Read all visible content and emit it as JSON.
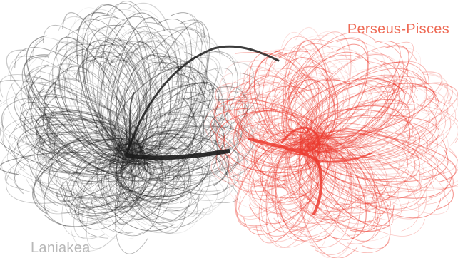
{
  "image": {
    "subject": "cosmic flow lines of two galaxy superclusters",
    "background": "#ffffff"
  },
  "labels": {
    "right": "Perseus-Pisces",
    "left": "Laniakea"
  },
  "colors": {
    "laniakea": "#1a1a1a",
    "laniakea_label": "#b8b8b8",
    "perseus_pisces": "#ec3b2f",
    "perseus_pisces_label": "#ee6a55"
  }
}
